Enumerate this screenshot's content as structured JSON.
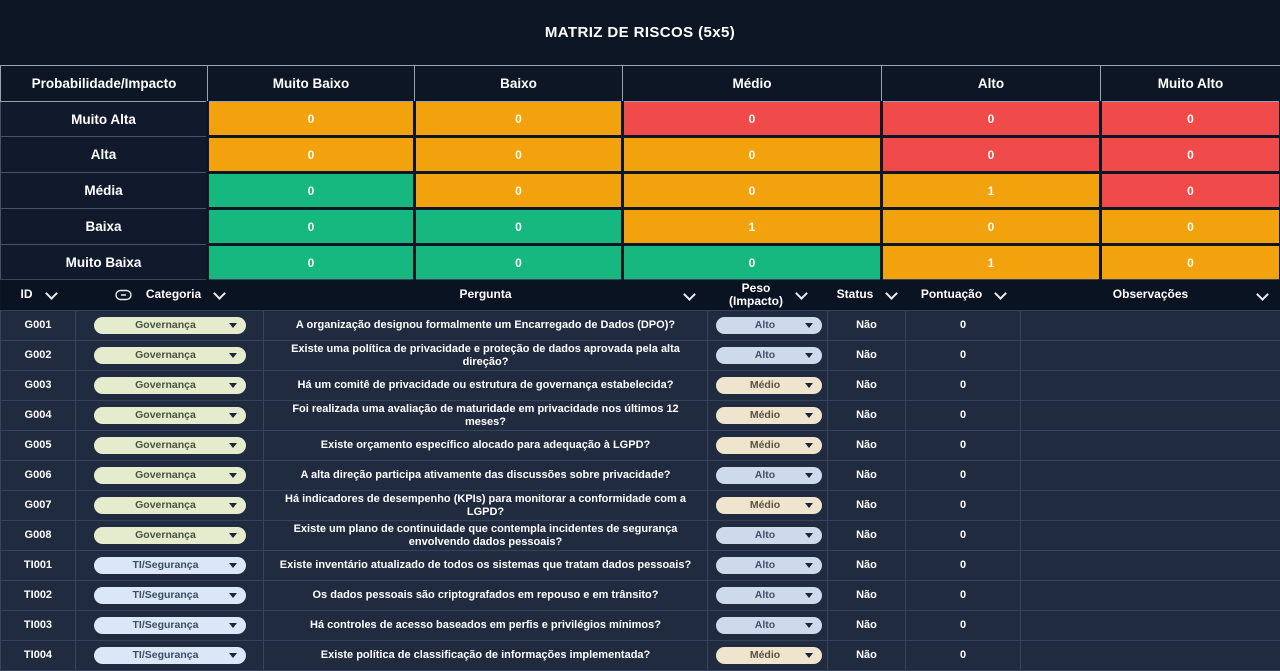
{
  "colors": {
    "background": "#0D1625",
    "table_row_bg": "#212B3F",
    "table_header_bg": "#0A1322",
    "grid_line": "#36425C",
    "risk_low_green": "#16B87F",
    "risk_medium_orange": "#F2A20D",
    "risk_high_red": "#F04A4A"
  },
  "matrix": {
    "title": "MATRIZ DE RISCOS (5x5)",
    "corner_label": "Probabilidade/Impacto",
    "impact_headers": [
      "Muito Baixo",
      "Baixo",
      "Médio",
      "Alto",
      "Muito Alto"
    ],
    "rows": [
      {
        "probability": "Muito Alta",
        "cells": [
          {
            "count": "0",
            "level": "medium"
          },
          {
            "count": "0",
            "level": "medium"
          },
          {
            "count": "0",
            "level": "high"
          },
          {
            "count": "0",
            "level": "high"
          },
          {
            "count": "0",
            "level": "high"
          }
        ]
      },
      {
        "probability": "Alta",
        "cells": [
          {
            "count": "0",
            "level": "medium"
          },
          {
            "count": "0",
            "level": "medium"
          },
          {
            "count": "0",
            "level": "medium"
          },
          {
            "count": "0",
            "level": "high"
          },
          {
            "count": "0",
            "level": "high"
          }
        ]
      },
      {
        "probability": "Média",
        "cells": [
          {
            "count": "0",
            "level": "low"
          },
          {
            "count": "0",
            "level": "medium"
          },
          {
            "count": "0",
            "level": "medium"
          },
          {
            "count": "1",
            "level": "medium"
          },
          {
            "count": "0",
            "level": "high"
          }
        ]
      },
      {
        "probability": "Baixa",
        "cells": [
          {
            "count": "0",
            "level": "low"
          },
          {
            "count": "0",
            "level": "low"
          },
          {
            "count": "1",
            "level": "medium"
          },
          {
            "count": "0",
            "level": "medium"
          },
          {
            "count": "0",
            "level": "medium"
          }
        ]
      },
      {
        "probability": "Muito Baixa",
        "cells": [
          {
            "count": "0",
            "level": "low"
          },
          {
            "count": "0",
            "level": "low"
          },
          {
            "count": "0",
            "level": "low"
          },
          {
            "count": "1",
            "level": "medium"
          },
          {
            "count": "0",
            "level": "medium"
          }
        ]
      }
    ]
  },
  "table": {
    "columns": [
      {
        "key": "id",
        "label": "ID",
        "chevron": true
      },
      {
        "key": "categoria",
        "label": "Categoria",
        "chevron": true,
        "icon": "select-pill-icon"
      },
      {
        "key": "pergunta",
        "label": "Pergunta",
        "chevron": true
      },
      {
        "key": "peso",
        "label": "Peso\n(Impacto)",
        "chevron": true
      },
      {
        "key": "status",
        "label": "Status",
        "chevron": true
      },
      {
        "key": "pontuacao",
        "label": "Pontuação",
        "chevron": true
      },
      {
        "key": "observacoes",
        "label": "Observações",
        "chevron": true
      }
    ],
    "pill_styles": {
      "Governança": {
        "bg": "#E4ECCD",
        "text": "#49523F"
      },
      "TI/Segurança": {
        "bg": "#D9E7F8",
        "text": "#3D4D64"
      },
      "Alto": {
        "bg": "#CDDAEC",
        "text": "#45516B"
      },
      "Médio": {
        "bg": "#EFE4CD",
        "text": "#5A5342"
      }
    },
    "rows": [
      {
        "id": "G001",
        "categoria": "Governança",
        "pergunta": "A organização designou formalmente um Encarregado de Dados (DPO)?",
        "peso": "Alto",
        "status": "Não",
        "pontuacao": "0",
        "observacoes": ""
      },
      {
        "id": "G002",
        "categoria": "Governança",
        "pergunta": "Existe uma política de privacidade e proteção de dados aprovada pela alta direção?",
        "peso": "Alto",
        "status": "Não",
        "pontuacao": "0",
        "observacoes": ""
      },
      {
        "id": "G003",
        "categoria": "Governança",
        "pergunta": "Há um comitê de privacidade ou estrutura de governança estabelecida?",
        "peso": "Médio",
        "status": "Não",
        "pontuacao": "0",
        "observacoes": ""
      },
      {
        "id": "G004",
        "categoria": "Governança",
        "pergunta": "Foi realizada uma avaliação de maturidade em privacidade nos últimos 12 meses?",
        "peso": "Médio",
        "status": "Não",
        "pontuacao": "0",
        "observacoes": ""
      },
      {
        "id": "G005",
        "categoria": "Governança",
        "pergunta": "Existe orçamento específico alocado para adequação à LGPD?",
        "peso": "Médio",
        "status": "Não",
        "pontuacao": "0",
        "observacoes": ""
      },
      {
        "id": "G006",
        "categoria": "Governança",
        "pergunta": "A alta direção participa ativamente das discussões sobre privacidade?",
        "peso": "Alto",
        "status": "Não",
        "pontuacao": "0",
        "observacoes": ""
      },
      {
        "id": "G007",
        "categoria": "Governança",
        "pergunta": "Há indicadores de desempenho (KPIs) para monitorar a conformidade com a LGPD?",
        "peso": "Médio",
        "status": "Não",
        "pontuacao": "0",
        "observacoes": ""
      },
      {
        "id": "G008",
        "categoria": "Governança",
        "pergunta": "Existe um plano de continuidade que contempla incidentes de segurança envolvendo dados pessoais?",
        "peso": "Alto",
        "status": "Não",
        "pontuacao": "0",
        "observacoes": ""
      },
      {
        "id": "TI001",
        "categoria": "TI/Segurança",
        "pergunta": "Existe inventário atualizado de todos os sistemas que tratam dados pessoais?",
        "peso": "Alto",
        "status": "Não",
        "pontuacao": "0",
        "observacoes": ""
      },
      {
        "id": "TI002",
        "categoria": "TI/Segurança",
        "pergunta": "Os dados pessoais são criptografados em repouso e em trânsito?",
        "peso": "Alto",
        "status": "Não",
        "pontuacao": "0",
        "observacoes": ""
      },
      {
        "id": "TI003",
        "categoria": "TI/Segurança",
        "pergunta": "Há controles de acesso baseados em perfis e privilégios mínimos?",
        "peso": "Alto",
        "status": "Não",
        "pontuacao": "0",
        "observacoes": ""
      },
      {
        "id": "TI004",
        "categoria": "TI/Segurança",
        "pergunta": "Existe política de classificação de informações implementada?",
        "peso": "Médio",
        "status": "Não",
        "pontuacao": "0",
        "observacoes": ""
      }
    ]
  }
}
